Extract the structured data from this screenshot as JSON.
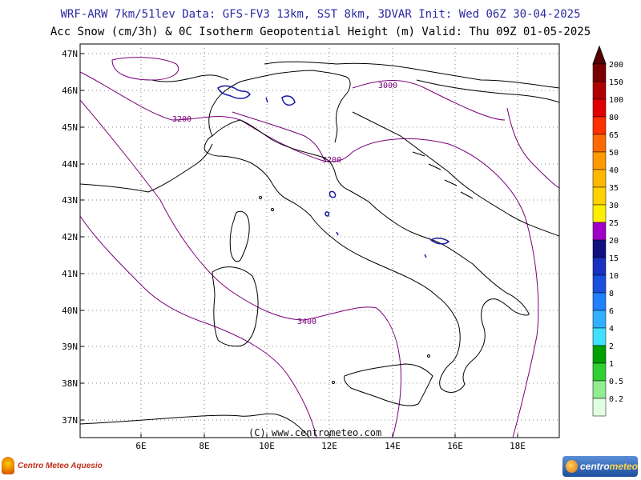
{
  "header": {
    "line1": "WRF-ARW 7km/51lev  Data: GFS-FV3 13km, SST 8km, 3DVAR  Init: Wed 06Z 30-04-2025",
    "line2": "Acc Snow (cm/3h) & 0C Isotherm Geopotential Height (m)  Valid: Thu 09Z 01-05-2025"
  },
  "map": {
    "lon_range": [
      4.3,
      19.3
    ],
    "lat_range": [
      36.6,
      47.3
    ],
    "lat_ticks": [
      "47N",
      "46N",
      "45N",
      "44N",
      "43N",
      "42N",
      "41N",
      "40N",
      "39N",
      "38N",
      "37N"
    ],
    "lon_ticks": [
      "6E",
      "8E",
      "10E",
      "12E",
      "14E",
      "16E",
      "18E"
    ],
    "grid": true,
    "contour_labels": [
      "3200",
      "3000",
      "3200",
      "3400"
    ],
    "credit": "(C) www.centrometeo.com",
    "colors": {
      "coast": "#000000",
      "isotherm": "#7a007a",
      "snow": "#1a1aa8",
      "grid": "#888888"
    }
  },
  "colorbar": {
    "labels": [
      "200",
      "150",
      "100",
      "80",
      "65",
      "50",
      "40",
      "35",
      "30",
      "25",
      "20",
      "15",
      "10",
      "8",
      "6",
      "4",
      "2",
      "1",
      "0.5",
      "0.2"
    ],
    "colors": [
      "#7a0000",
      "#b00000",
      "#e00000",
      "#ff3000",
      "#ff6a00",
      "#ff9a00",
      "#ffb800",
      "#ffd200",
      "#ffee00",
      "#a000c8",
      "#101080",
      "#1a30c0",
      "#1a50e0",
      "#2080ff",
      "#30b0ff",
      "#40e0ff",
      "#00a000",
      "#30d030",
      "#90ee90",
      "#e0ffe0"
    ]
  },
  "logos": {
    "left": "Centro Meteo Aquesio",
    "right_part1": "centro",
    "right_part2": "meteo"
  }
}
